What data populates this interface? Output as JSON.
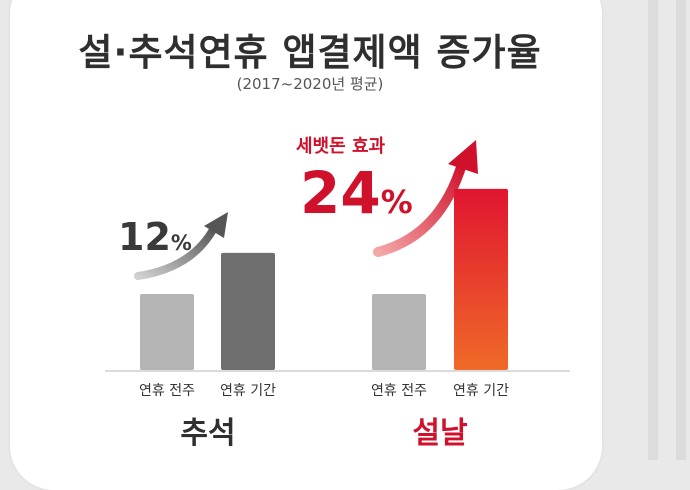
{
  "title": "설·추석연휴 앱결제액 증가율",
  "subtitle": "(2017~2020년 평균)",
  "colors": {
    "pre_bar": "#b4b4b4",
    "chuseok_holiday": "#6e6e6e",
    "seollal_holiday_top": "#e01530",
    "seollal_holiday_bottom": "#f06a28",
    "seollal_text": "#d0112b",
    "chuseok_text": "#2f2f2f"
  },
  "chart_data": {
    "type": "bar",
    "groups": [
      {
        "name": "추석",
        "categories": [
          "연휴 전주",
          "연휴 기간"
        ],
        "values": [
          100,
          112
        ],
        "increase_label": "12",
        "increase_unit": "%"
      },
      {
        "name": "설날",
        "categories": [
          "연휴 전주",
          "연휴 기간"
        ],
        "values": [
          100,
          124
        ],
        "increase_label": "24",
        "increase_unit": "%",
        "annotation": "세뱃돈 효과"
      }
    ]
  }
}
